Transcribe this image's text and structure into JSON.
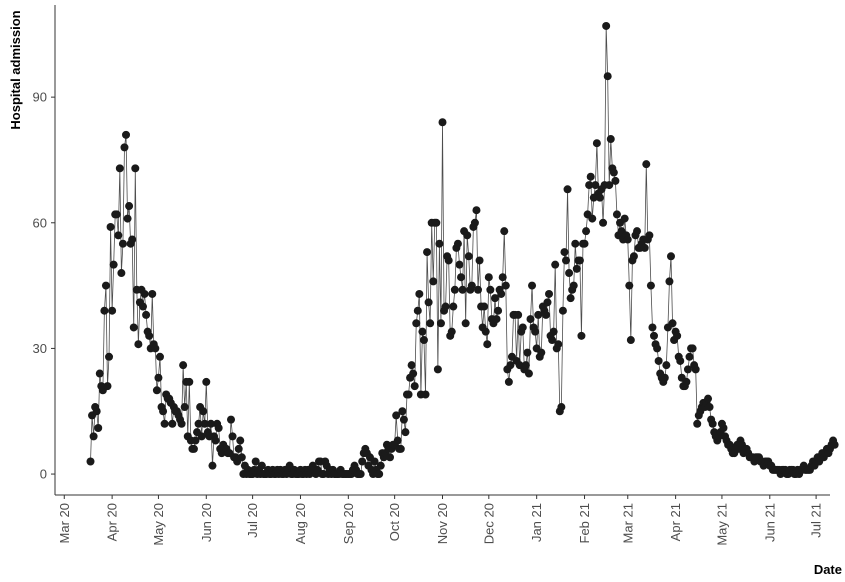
{
  "chart_data": {
    "type": "scatter",
    "title": "",
    "xlabel": "Date",
    "ylabel": "Hospital admission",
    "x_tick_labels": [
      "Mar 20",
      "Apr 20",
      "May 20",
      "Jun 20",
      "Jul 20",
      "Aug 20",
      "Sep 20",
      "Oct 20",
      "Nov 20",
      "Dec 20",
      "Jan 21",
      "Feb 21",
      "Mar 21",
      "Apr 21",
      "May 21",
      "Jun 21",
      "Jul 21"
    ],
    "x_tick_dates": [
      "2020-03-01",
      "2020-04-01",
      "2020-05-01",
      "2020-06-01",
      "2020-07-01",
      "2020-08-01",
      "2020-09-01",
      "2020-10-01",
      "2020-11-01",
      "2020-12-01",
      "2021-01-01",
      "2021-02-01",
      "2021-03-01",
      "2021-04-01",
      "2021-05-01",
      "2021-06-01",
      "2021-07-01"
    ],
    "y_tick_labels": [
      "0",
      "30",
      "60",
      "90"
    ],
    "y_ticks": [
      0,
      30,
      60,
      90
    ],
    "xlim": [
      "2020-02-24",
      "2021-07-10"
    ],
    "ylim": [
      -5,
      112
    ],
    "grid": false,
    "legend": "none",
    "marker_color": "#1a1a1a",
    "line_color": "#4d4d4d",
    "series": [
      {
        "x_start": "2020-03-18",
        "values": [
          3,
          14,
          9,
          16,
          15,
          11,
          24,
          21,
          20,
          39,
          45,
          21,
          28,
          59,
          39,
          50,
          62,
          62,
          57,
          73,
          48,
          55,
          78,
          81,
          61,
          64,
          55,
          56,
          35,
          73,
          44,
          31,
          41,
          44,
          40,
          43,
          38,
          34,
          33,
          30,
          43,
          31,
          30,
          20,
          23,
          28,
          16,
          15,
          12,
          19,
          18,
          18,
          17,
          12,
          16,
          15,
          15,
          14,
          13,
          12,
          26,
          16,
          22,
          9,
          22,
          8,
          6,
          6,
          8,
          10,
          12,
          16,
          9,
          15,
          12,
          22,
          10,
          9,
          12,
          2,
          9,
          8,
          12,
          11,
          6,
          5,
          7,
          6,
          6,
          5,
          5,
          13,
          9,
          4,
          4,
          3,
          6,
          8,
          4,
          0,
          2,
          0,
          1,
          0,
          0,
          0,
          1,
          3,
          0,
          1,
          0,
          2,
          0,
          0,
          0,
          1,
          0,
          0,
          1,
          0,
          0,
          1,
          0,
          1,
          0,
          0,
          1,
          0,
          1,
          2,
          0,
          0,
          1,
          0,
          0,
          0,
          1,
          0,
          0,
          1,
          0,
          1,
          0,
          1,
          2,
          1,
          0,
          1,
          3,
          3,
          0,
          0,
          3,
          2,
          0,
          1,
          0,
          1,
          0,
          0,
          0,
          0,
          1,
          0,
          0,
          0,
          0,
          0,
          0,
          0,
          1,
          2,
          1,
          0,
          0,
          0,
          3,
          5,
          6,
          5,
          2,
          4,
          1,
          0,
          3,
          1,
          0,
          0,
          2,
          5,
          4,
          5,
          7,
          6,
          4,
          6,
          7,
          7,
          14,
          8,
          6,
          6,
          15,
          13,
          10,
          19,
          19,
          23,
          26,
          24,
          21,
          36,
          39,
          43,
          19,
          34,
          32,
          19,
          53,
          41,
          36,
          60,
          46,
          60,
          60,
          25,
          55,
          36,
          84,
          39,
          40,
          52,
          51,
          33,
          34,
          40,
          44,
          54,
          55,
          50,
          47,
          44,
          58,
          36,
          57,
          52,
          44,
          45,
          59,
          60,
          63,
          44,
          51,
          40,
          35,
          40,
          34,
          31,
          47,
          44,
          37,
          36,
          42,
          37,
          39,
          44,
          43,
          47,
          58,
          45,
          25,
          22,
          26,
          28,
          38,
          38,
          27,
          38,
          26,
          34,
          35,
          25,
          26,
          29,
          24,
          37,
          45,
          35,
          34,
          30,
          38,
          28,
          29,
          40,
          39,
          38,
          41,
          43,
          33,
          32,
          34,
          50,
          30,
          31,
          15,
          16,
          39,
          53,
          51,
          68,
          48,
          42,
          44,
          45,
          55,
          49,
          51,
          51,
          33,
          55,
          55,
          58,
          62,
          69,
          71,
          61,
          66,
          69,
          79,
          67,
          66,
          68,
          60,
          69,
          107,
          95,
          69,
          80,
          73,
          72,
          70,
          62,
          57,
          60,
          58,
          56,
          61,
          57,
          56,
          45,
          32,
          51,
          52,
          57,
          58,
          54,
          54,
          55,
          56,
          54,
          74,
          56,
          57,
          45,
          35,
          33,
          31,
          30,
          27,
          24,
          23,
          22,
          23,
          26,
          35,
          46,
          52,
          36,
          32,
          34,
          33,
          28,
          27,
          23,
          21,
          21,
          22,
          25,
          28,
          30,
          30,
          26,
          25,
          12,
          14,
          15,
          16,
          17,
          16,
          17,
          18,
          16,
          13,
          12,
          10,
          9,
          8,
          9,
          10,
          12,
          11,
          9,
          8,
          7,
          7,
          6,
          5,
          5,
          6,
          7,
          6,
          8,
          7,
          5,
          6,
          6,
          5,
          4,
          4,
          4,
          3,
          4,
          4,
          4,
          3,
          3,
          2,
          3,
          3,
          3,
          2,
          2,
          1,
          1,
          1,
          1,
          1,
          0,
          1,
          1,
          1,
          0,
          0,
          1,
          1,
          1,
          0,
          0,
          1,
          0,
          1,
          1,
          2,
          1,
          1,
          1,
          1,
          2,
          3,
          2,
          3,
          4,
          3,
          4,
          5,
          4,
          5,
          6,
          5,
          6,
          7,
          8,
          7
        ]
      }
    ]
  }
}
